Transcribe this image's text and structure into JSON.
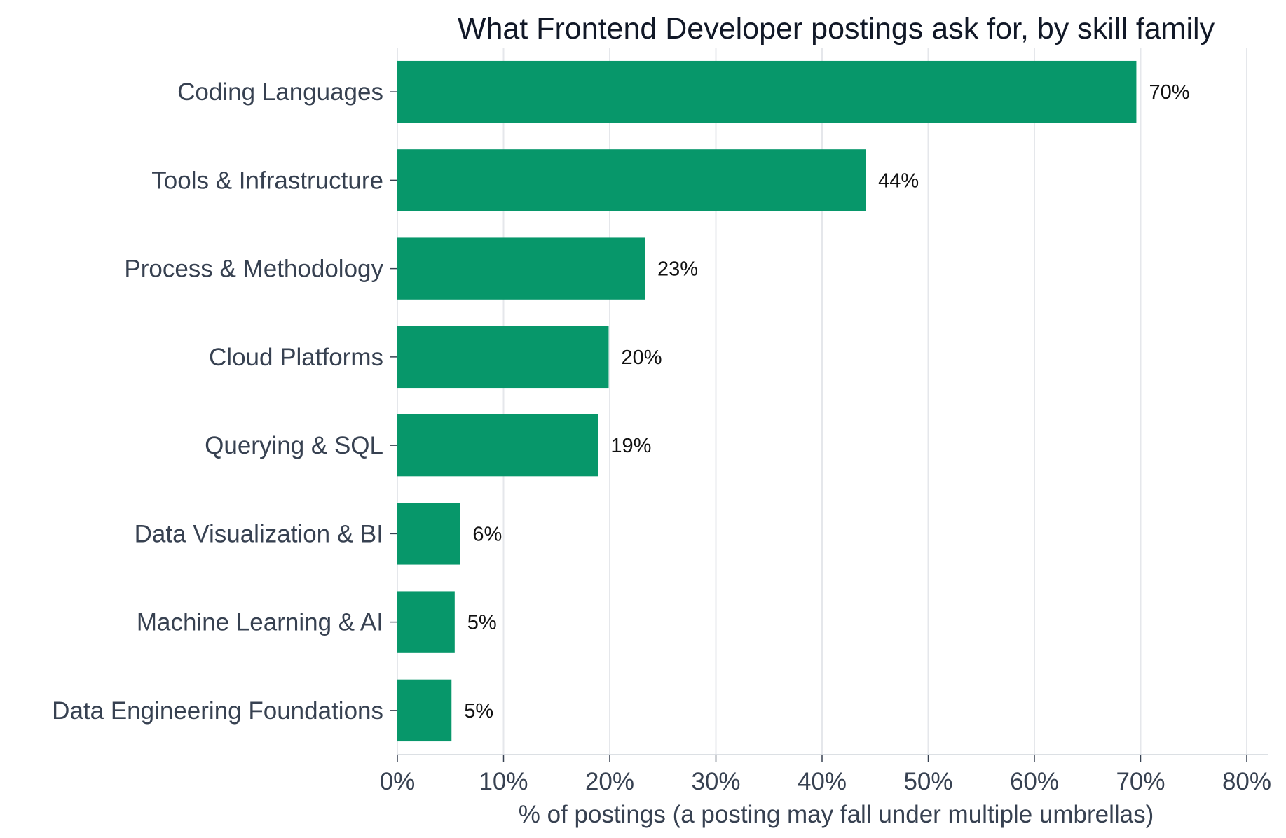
{
  "chart_data": {
    "type": "bar",
    "orientation": "horizontal",
    "title": "What Frontend Developer postings ask for, by skill family",
    "xlabel": "% of postings (a posting may fall under multiple umbrellas)",
    "ylabel": "",
    "xlim": [
      0,
      82
    ],
    "xticks": [
      0,
      10,
      20,
      30,
      40,
      50,
      60,
      70,
      80
    ],
    "xtick_labels": [
      "0%",
      "10%",
      "20%",
      "30%",
      "40%",
      "50%",
      "60%",
      "70%",
      "80%"
    ],
    "grid": "vertical",
    "bar_color": "#07976a",
    "categories": [
      "Coding Languages",
      "Tools & Infrastructure",
      "Process & Methodology",
      "Cloud Platforms",
      "Querying & SQL",
      "Data Visualization & BI",
      "Machine Learning & AI",
      "Data Engineering Foundations"
    ],
    "values": [
      69.6,
      44.1,
      23.3,
      19.9,
      18.9,
      5.9,
      5.4,
      5.1
    ],
    "value_labels": [
      "70%",
      "44%",
      "23%",
      "20%",
      "19%",
      "6%",
      "5%",
      "5%"
    ]
  }
}
